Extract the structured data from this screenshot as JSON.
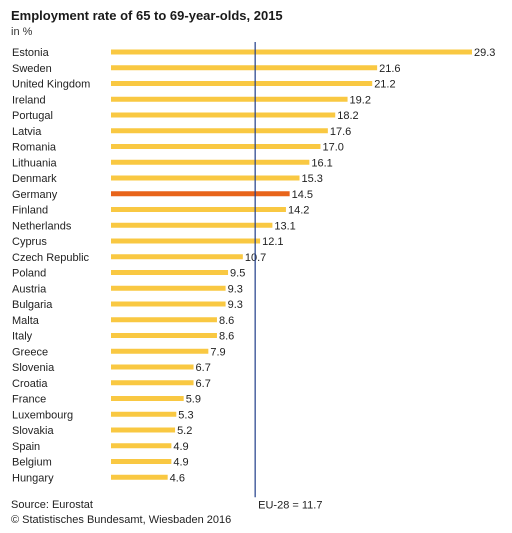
{
  "chart_data": {
    "type": "bar",
    "orientation": "horizontal",
    "title": "Employment rate of 65 to 69-year-olds, 2015",
    "unit_label": "in %",
    "categories": [
      "Estonia",
      "Sweden",
      "United Kingdom",
      "Ireland",
      "Portugal",
      "Latvia",
      "Romania",
      "Lithuania",
      "Denmark",
      "Germany",
      "Finland",
      "Netherlands",
      "Cyprus",
      "Czech Republic",
      "Poland",
      "Austria",
      "Bulgaria",
      "Malta",
      "Italy",
      "Greece",
      "Slovenia",
      "Croatia",
      "France",
      "Luxembourg",
      "Slovakia",
      "Spain",
      "Belgium",
      "Hungary"
    ],
    "values": [
      29.3,
      21.6,
      21.2,
      19.2,
      18.2,
      17.6,
      17.0,
      16.1,
      15.3,
      14.5,
      14.2,
      13.1,
      12.1,
      10.7,
      9.5,
      9.3,
      9.3,
      8.6,
      8.6,
      7.9,
      6.7,
      6.7,
      5.9,
      5.3,
      5.2,
      4.9,
      4.9,
      4.6
    ],
    "value_labels": [
      "29.3",
      "21.6",
      "21.2",
      "19.2",
      "18.2",
      "17.6",
      "17.0",
      "16.1",
      "15.3",
      "14.5",
      "14.2",
      "13.1",
      "12.1",
      "10.7",
      "9.5",
      "9.3",
      "9.3",
      "8.6",
      "8.6",
      "7.9",
      "6.7",
      "6.7",
      "5.9",
      "5.3",
      "5.2",
      "4.9",
      "4.9",
      "4.6"
    ],
    "highlight_category": "Germany",
    "reference_line": {
      "value": 11.7,
      "label": "EU-28 = 11.7"
    },
    "xlim": [
      0,
      29.3
    ],
    "grid": false,
    "colors": {
      "bar": "#F9C842",
      "highlight": "#E8641A",
      "reference_line": "#1F3C88"
    }
  },
  "footer": {
    "source": "Source: Eurostat",
    "copyright": "© Statistisches Bundesamt, Wiesbaden 2016"
  }
}
